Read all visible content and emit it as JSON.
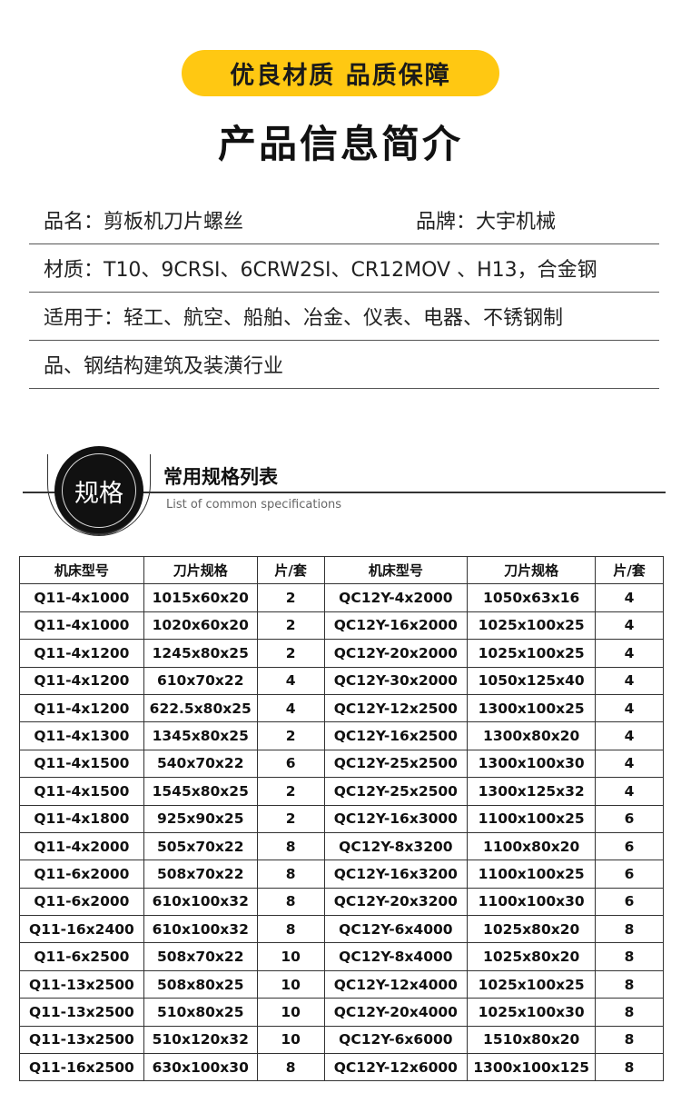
{
  "banner": "优良材质 品质保障",
  "title": "产品信息简介",
  "info": {
    "name": "品名：剪板机刀片螺丝",
    "brand": "品牌：大宇机械",
    "material": "材质：T10、9CRSI、6CRW2SI、CR12MOV 、H13，合金钢",
    "usage_line1": "适用于：轻工、航空、船舶、冶金、仪表、电器、不锈钢制",
    "usage_line2": "品、钢结构建筑及装潢行业"
  },
  "section": {
    "badge": "规格",
    "title": "常用规格列表",
    "subtitle": "List of common specifications"
  },
  "table": {
    "headers": [
      "机床型号",
      "刀片规格",
      "片/套",
      "机床型号",
      "刀片规格",
      "片/套"
    ],
    "rows": [
      [
        "Q11-4x1000",
        "1015x60x20",
        "2",
        "QC12Y-4x2000",
        "1050x63x16",
        "4"
      ],
      [
        "Q11-4x1000",
        "1020x60x20",
        "2",
        "QC12Y-16x2000",
        "1025x100x25",
        "4"
      ],
      [
        "Q11-4x1200",
        "1245x80x25",
        "2",
        "QC12Y-20x2000",
        "1025x100x25",
        "4"
      ],
      [
        "Q11-4x1200",
        "610x70x22",
        "4",
        "QC12Y-30x2000",
        "1050x125x40",
        "4"
      ],
      [
        "Q11-4x1200",
        "622.5x80x25",
        "4",
        "QC12Y-12x2500",
        "1300x100x25",
        "4"
      ],
      [
        "Q11-4x1300",
        "1345x80x25",
        "2",
        "QC12Y-16x2500",
        "1300x80x20",
        "4"
      ],
      [
        "Q11-4x1500",
        "540x70x22",
        "6",
        "QC12Y-25x2500",
        "1300x100x30",
        "4"
      ],
      [
        "Q11-4x1500",
        "1545x80x25",
        "2",
        "QC12Y-25x2500",
        "1300x125x32",
        "4"
      ],
      [
        "Q11-4x1800",
        "925x90x25",
        "2",
        "QC12Y-16x3000",
        "1100x100x25",
        "6"
      ],
      [
        "Q11-4x2000",
        "505x70x22",
        "8",
        "QC12Y-8x3200",
        "1100x80x20",
        "6"
      ],
      [
        "Q11-6x2000",
        "508x70x22",
        "8",
        "QC12Y-16x3200",
        "1100x100x25",
        "6"
      ],
      [
        "Q11-6x2000",
        "610x100x32",
        "8",
        "QC12Y-20x3200",
        "1100x100x30",
        "6"
      ],
      [
        "Q11-16x2400",
        "610x100x32",
        "8",
        "QC12Y-6x4000",
        "1025x80x20",
        "8"
      ],
      [
        "Q11-6x2500",
        "508x70x22",
        "10",
        "QC12Y-8x4000",
        "1025x80x20",
        "8"
      ],
      [
        "Q11-13x2500",
        "508x80x25",
        "10",
        "QC12Y-12x4000",
        "1025x100x25",
        "8"
      ],
      [
        "Q11-13x2500",
        "510x80x25",
        "10",
        "QC12Y-20x4000",
        "1025x100x30",
        "8"
      ],
      [
        "Q11-13x2500",
        "510x120x32",
        "10",
        "QC12Y-6x6000",
        "1510x80x20",
        "8"
      ],
      [
        "Q11-16x2500",
        "630x100x30",
        "8",
        "QC12Y-12x6000",
        "1300x100x125",
        "8"
      ]
    ]
  },
  "colors": {
    "accent": "#FFC812"
  }
}
